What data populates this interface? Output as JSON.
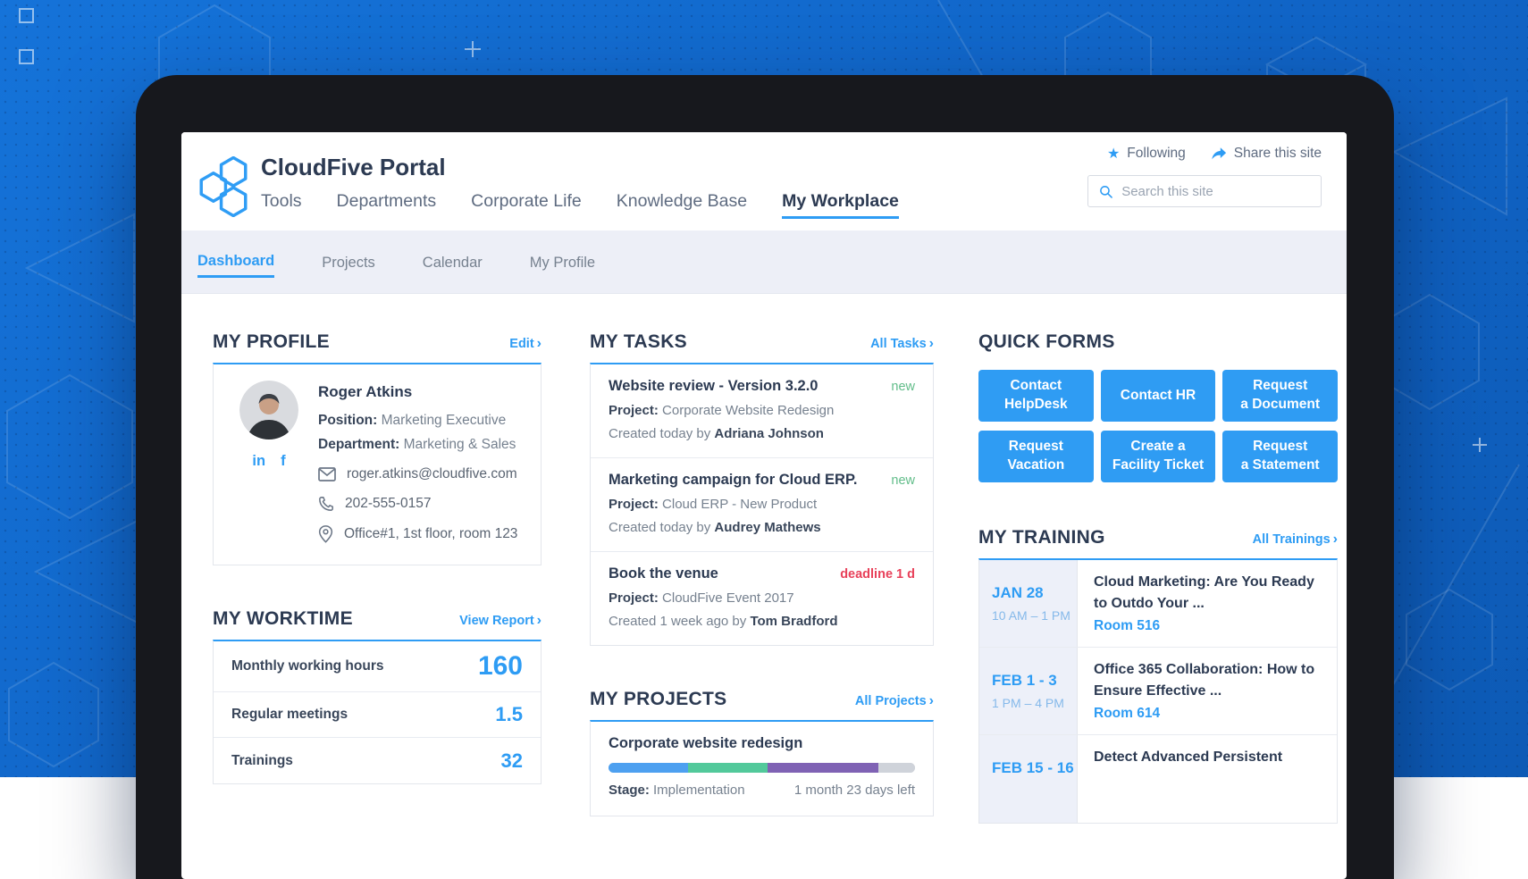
{
  "icons": {
    "star": "★",
    "chevron": "›",
    "linkedin": "in",
    "facebook": "f"
  },
  "colors": {
    "accent": "#2e9cf4",
    "button_blue": "#2f9cf3",
    "badge_new": "#62bd8a",
    "badge_deadline": "#e8415a",
    "heading": "#2c3a52",
    "subnav_bg": "#edeff7"
  },
  "header": {
    "title": "CloudFive Portal",
    "nav": [
      {
        "label": "Tools"
      },
      {
        "label": "Departments"
      },
      {
        "label": "Corporate Life"
      },
      {
        "label": "Knowledge Base"
      },
      {
        "label": "My Workplace"
      }
    ],
    "following_label": "Following",
    "share_label": "Share this site",
    "search_placeholder": "Search this site"
  },
  "subnav": {
    "items": [
      {
        "label": "Dashboard"
      },
      {
        "label": "Projects"
      },
      {
        "label": "Calendar"
      },
      {
        "label": "My Profile"
      }
    ]
  },
  "profile": {
    "section_title": "MY PROFILE",
    "edit_link": "Edit",
    "name": "Roger Atkins",
    "position_label": "Position:",
    "position": "Marketing Executive",
    "department_label": "Department:",
    "department": "Marketing & Sales",
    "email": "roger.atkins@cloudfive.com",
    "phone": "202-555-0157",
    "location": "Office#1, 1st floor, room 123"
  },
  "worktime": {
    "section_title": "MY WORKTIME",
    "link": "View Report",
    "rows": [
      {
        "label": "Monthly working hours",
        "value": "160"
      },
      {
        "label": "Regular meetings",
        "value": "1.5"
      },
      {
        "label": "Trainings",
        "value": "32"
      }
    ]
  },
  "tasks": {
    "section_title": "MY TASKS",
    "link": "All Tasks",
    "items": [
      {
        "title": "Website review - Version 3.2.0",
        "badge": "new",
        "project_label": "Project:",
        "project": "Corporate Website Redesign",
        "created_prefix": "Created today by",
        "created_by": "Adriana Johnson"
      },
      {
        "title": "Marketing campaign for Cloud ERP.",
        "badge": "new",
        "project_label": "Project:",
        "project": "Cloud ERP - New Product",
        "created_prefix": "Created today by",
        "created_by": "Audrey Mathews"
      },
      {
        "title": "Book the venue",
        "badge": "deadline 1 d",
        "project_label": "Project:",
        "project": "CloudFive Event 2017",
        "created_prefix": "Created 1 week ago by",
        "created_by": "Tom Bradford"
      }
    ]
  },
  "projects": {
    "section_title": "MY PROJECTS",
    "link": "All Projects",
    "items": [
      {
        "title": "Corporate website redesign",
        "stage_label": "Stage:",
        "stage": "Implementation",
        "time_left": "1 month 23 days left",
        "progress_segments": [
          {
            "color": "#4da0f0",
            "percent": 26
          },
          {
            "color": "#52c99b",
            "percent": 26
          },
          {
            "color": "#7f62b4",
            "percent": 36
          },
          {
            "color": "#cfd3da",
            "percent": 12
          }
        ]
      }
    ]
  },
  "quick_forms": {
    "section_title": "QUICK FORMS",
    "buttons": [
      "Contact\nHelpDesk",
      "Contact HR",
      "Request\na Document",
      "Request\nVacation",
      "Create a\nFacility Ticket",
      "Request\na Statement"
    ]
  },
  "training": {
    "section_title": "MY TRAINING",
    "link": "All Trainings",
    "items": [
      {
        "date": "JAN 28",
        "time": "10 AM – 1 PM",
        "title": "Cloud Marketing: Are You Ready to Outdo Your ...",
        "room": "Room 516"
      },
      {
        "date": "FEB 1 - 3",
        "time": "1 PM – 4 PM",
        "title": "Office 365 Collaboration: How to Ensure Effective ...",
        "room": "Room 614"
      },
      {
        "date": "FEB 15 - 16",
        "time": "",
        "title": "Detect Advanced Persistent",
        "room": ""
      }
    ]
  }
}
